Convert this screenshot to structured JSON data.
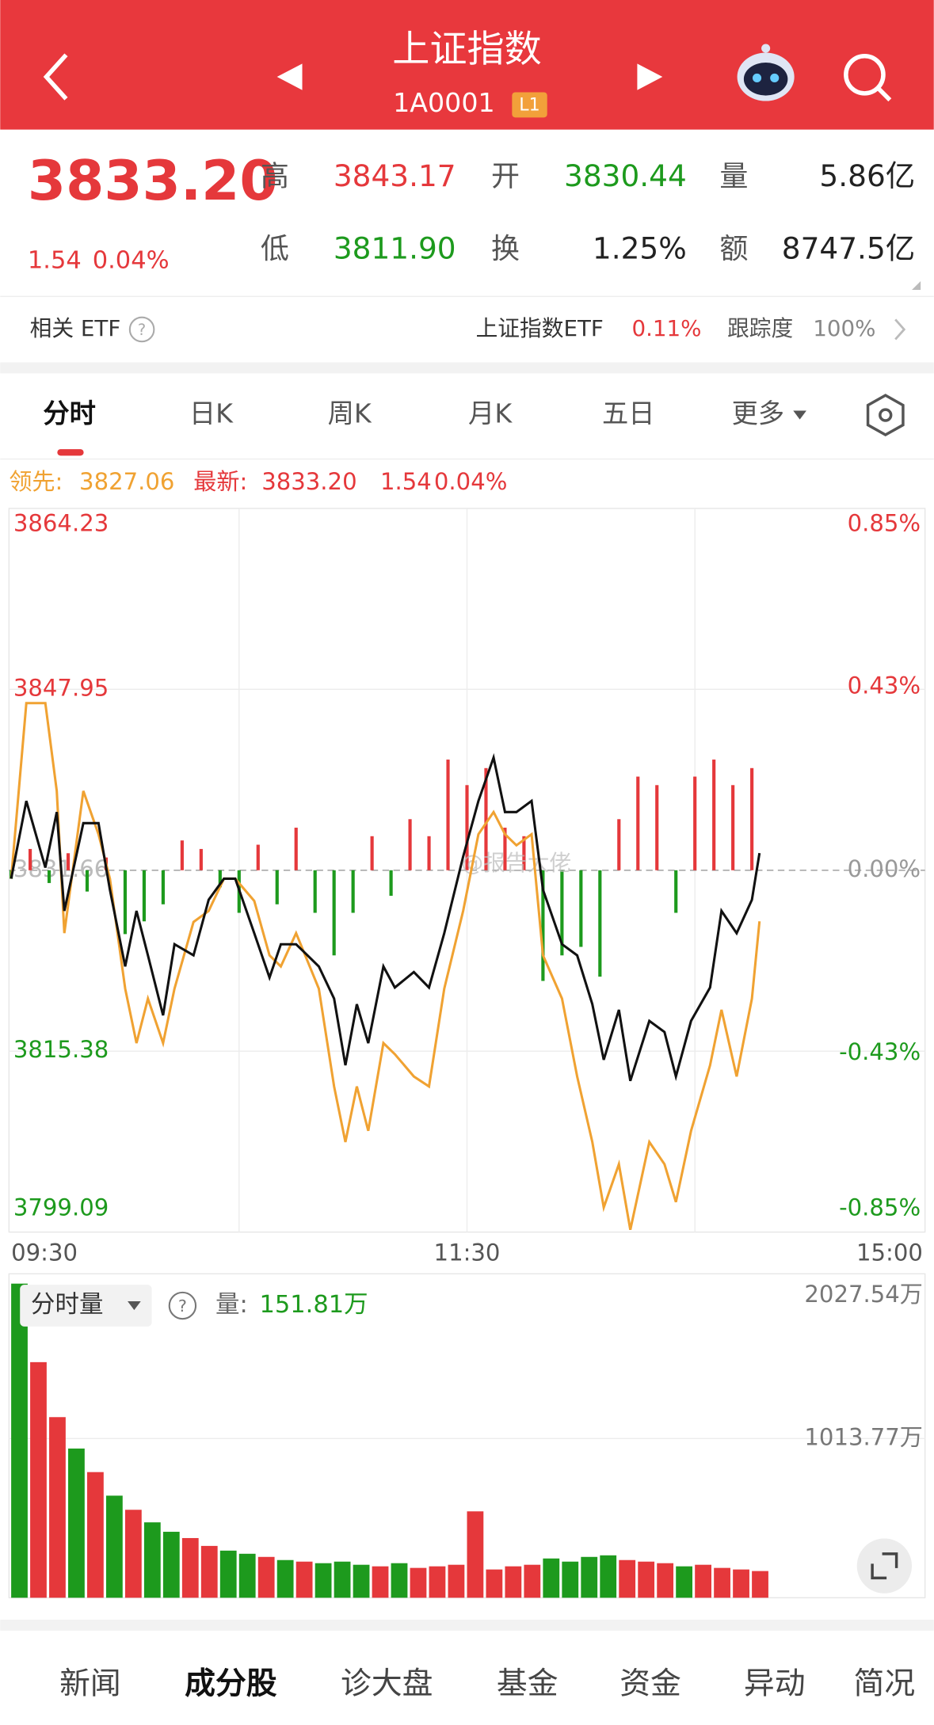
{
  "header": {
    "title": "上证指数",
    "code": "1A0001",
    "badge": "L1"
  },
  "quote": {
    "price": "3833.20",
    "change": "1.54",
    "pct": "0.04%",
    "fields": [
      {
        "label": "高",
        "value": "3843.17"
      },
      {
        "label": "开",
        "value": "3830.44"
      },
      {
        "label": "量",
        "value": "5.86亿"
      },
      {
        "label": "低",
        "value": "3811.90"
      },
      {
        "label": "换",
        "value": "1.25%"
      },
      {
        "label": "额",
        "value": "8747.5亿"
      }
    ]
  },
  "etf": {
    "label": "相关 ETF",
    "name": "上证指数ETF",
    "pct": "0.11%",
    "track_label": "跟踪度",
    "track": "100%"
  },
  "tabs": [
    "分时",
    "日K",
    "周K",
    "月K",
    "五日",
    "更多"
  ],
  "legend": {
    "lead_value": "3827.06"
  },
  "watermark": "@报告大佬",
  "chart_data": [
    {
      "type": "line",
      "xlim": [
        0,
        240
      ],
      "xticks": [
        {
          "value": 0,
          "label": "09:30"
        },
        {
          "value": 60,
          "label": null
        },
        {
          "value": 120,
          "label": "11:30"
        },
        {
          "value": 180,
          "label": null
        },
        {
          "value": 240,
          "label": "15:00"
        }
      ],
      "ylim": [
        3799.09,
        3864.23
      ],
      "yticks": [
        3799.09,
        3815.38,
        3831.66,
        3847.95,
        3864.23
      ],
      "y2lim": [
        -0.85,
        0.85
      ],
      "y2ticks": [
        {
          "value": -0.85,
          "label": "-0.85%"
        },
        {
          "value": -0.43,
          "label": "-0.43%"
        },
        {
          "value": 0,
          "label": "0.00%"
        },
        {
          "value": 0.43,
          "label": "0.43%"
        },
        {
          "value": 0.85,
          "label": "0.85%"
        }
      ],
      "up_color": "#e5383b",
      "down_color": "#1d9a1d",
      "grid": true,
      "x": [
        0,
        4,
        9,
        12,
        14,
        19,
        23,
        26,
        30,
        33,
        36,
        40,
        43,
        48,
        52,
        56,
        59,
        64,
        68,
        71,
        75,
        81,
        85,
        88,
        91,
        94,
        98,
        101,
        106,
        110,
        114,
        119,
        123,
        127,
        130,
        133,
        137,
        140,
        145,
        149,
        153,
        156,
        160,
        163,
        168,
        172,
        175,
        179,
        184,
        187,
        191,
        195,
        197
      ],
      "series": [
        {
          "name": "领先:",
          "color": "#f0a232",
          "values": [
            3830.9,
            3846.7,
            3846.7,
            3838.8,
            3826.0,
            3838.8,
            3834.9,
            3830.9,
            3821.0,
            3816.1,
            3820.1,
            3816.1,
            3821.0,
            3827.0,
            3828.0,
            3830.9,
            3830.9,
            3828.9,
            3824.0,
            3823.0,
            3826.0,
            3821.0,
            3812.2,
            3807.2,
            3812.2,
            3808.2,
            3816.1,
            3815.1,
            3813.1,
            3812.2,
            3821.0,
            3828.0,
            3834.9,
            3836.9,
            3834.9,
            3833.9,
            3834.9,
            3824.0,
            3820.1,
            3813.1,
            3807.2,
            3801.3,
            3805.2,
            3799.3,
            3807.2,
            3805.2,
            3801.8,
            3808.2,
            3814.1,
            3819.1,
            3813.1,
            3820.1,
            3827.06
          ]
        },
        {
          "name": "最新:",
          "color": "#111111",
          "values": [
            3830.9,
            3837.9,
            3831.9,
            3836.9,
            3828.0,
            3835.9,
            3835.9,
            3829.9,
            3823.0,
            3828.0,
            3824.0,
            3818.6,
            3825.0,
            3824.0,
            3829.0,
            3830.9,
            3830.9,
            3826.0,
            3822.0,
            3825.0,
            3825.0,
            3823.0,
            3820.1,
            3814.1,
            3819.6,
            3816.1,
            3823.0,
            3821.1,
            3822.5,
            3821.1,
            3826.0,
            3832.9,
            3837.9,
            3841.8,
            3836.9,
            3836.9,
            3837.9,
            3829.9,
            3825.0,
            3824.0,
            3819.6,
            3814.6,
            3819.1,
            3812.7,
            3818.1,
            3817.1,
            3813.1,
            3818.1,
            3821.1,
            3828.0,
            3826.0,
            3829.0,
            3833.2
          ]
        }
      ],
      "bars": {
        "type": "bar",
        "axis": "y2",
        "x": [
          0,
          5,
          10,
          15,
          20,
          25,
          30,
          35,
          40,
          45,
          50,
          55,
          60,
          65,
          70,
          75,
          80,
          85,
          90,
          95,
          100,
          105,
          110,
          115,
          120,
          125,
          130,
          135,
          140,
          145,
          150,
          155,
          160,
          165,
          170,
          175,
          180,
          185,
          190,
          195
        ],
        "values": [
          -0.02,
          0.05,
          -0.03,
          0.04,
          -0.05,
          0.03,
          -0.15,
          -0.12,
          -0.08,
          0.07,
          0.05,
          -0.04,
          -0.1,
          0.06,
          -0.08,
          0.1,
          -0.1,
          -0.2,
          -0.1,
          0.08,
          -0.06,
          0.12,
          0.08,
          0.26,
          0.2,
          0.24,
          0.1,
          0.08,
          -0.26,
          -0.2,
          -0.18,
          -0.25,
          0.12,
          0.22,
          0.2,
          -0.1,
          0.22,
          0.26,
          0.2,
          0.24
        ]
      }
    },
    {
      "type": "bar",
      "title": "分时量",
      "readout_label": "量:",
      "readout": "151.81万",
      "xlim": [
        0,
        240
      ],
      "ylim": [
        0,
        2027.54
      ],
      "yticks": [
        {
          "value": 1013.77,
          "label": "1013.77万"
        },
        {
          "value": 2027.54,
          "label": "2027.54万"
        }
      ],
      "x": [
        0,
        5,
        10,
        15,
        20,
        25,
        30,
        35,
        40,
        45,
        50,
        55,
        60,
        65,
        70,
        75,
        80,
        85,
        90,
        95,
        100,
        105,
        110,
        115,
        120,
        125,
        130,
        135,
        140,
        145,
        150,
        155,
        160,
        165,
        170,
        175,
        180,
        185,
        190,
        195
      ],
      "values": [
        2000,
        1500,
        1150,
        950,
        800,
        650,
        560,
        480,
        420,
        380,
        330,
        300,
        280,
        260,
        240,
        230,
        220,
        230,
        210,
        200,
        220,
        190,
        200,
        210,
        550,
        180,
        200,
        210,
        250,
        230,
        260,
        270,
        240,
        230,
        220,
        200,
        210,
        190,
        180,
        170
      ],
      "colors": [
        "#1d9a1d",
        "#e5383b",
        "#e5383b",
        "#1d9a1d",
        "#e5383b",
        "#1d9a1d",
        "#e5383b",
        "#1d9a1d",
        "#1d9a1d",
        "#e5383b",
        "#e5383b",
        "#1d9a1d",
        "#1d9a1d",
        "#e5383b",
        "#1d9a1d",
        "#e5383b",
        "#1d9a1d",
        "#1d9a1d",
        "#1d9a1d",
        "#e5383b",
        "#1d9a1d",
        "#e5383b",
        "#e5383b",
        "#e5383b",
        "#e5383b",
        "#e5383b",
        "#e5383b",
        "#e5383b",
        "#1d9a1d",
        "#1d9a1d",
        "#1d9a1d",
        "#1d9a1d",
        "#e5383b",
        "#e5383b",
        "#e5383b",
        "#1d9a1d",
        "#e5383b",
        "#e5383b",
        "#e5383b",
        "#e5383b"
      ]
    }
  ],
  "bottom_tabs": [
    "新闻",
    "成分股",
    "诊大盘",
    "基金",
    "资金",
    "异动",
    "简况"
  ]
}
